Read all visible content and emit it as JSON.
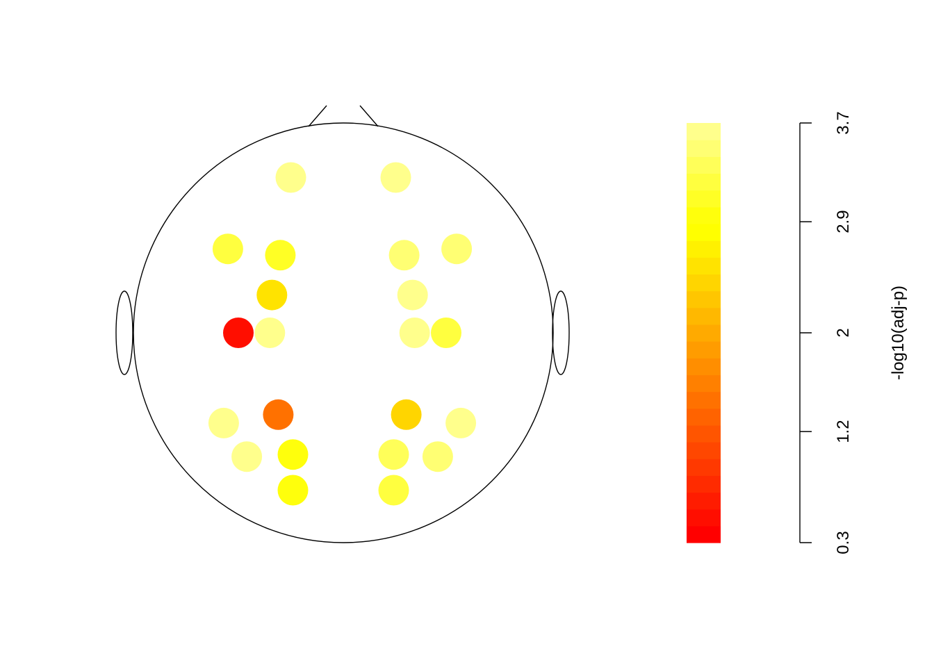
{
  "chart_data": {
    "type": "scatter",
    "subtype": "eeg-topographic-map",
    "title": "",
    "colorbar": {
      "label": "-log10(adj-p)",
      "ticks": [
        "0.3",
        "1.2",
        "2",
        "2.9",
        "3.7"
      ],
      "tick_values": [
        0.3,
        1.2,
        2.0,
        2.9,
        3.7
      ],
      "range": [
        0.3,
        3.7
      ],
      "n_colors": 25,
      "palette": "heat (red to light yellow)"
    },
    "electrodes": [
      {
        "x": -0.25,
        "y": 0.74,
        "value": 3.65
      },
      {
        "x": 0.25,
        "y": 0.74,
        "value": 3.65
      },
      {
        "x": -0.55,
        "y": 0.4,
        "value": 3.25
      },
      {
        "x": -0.3,
        "y": 0.37,
        "value": 3.05
      },
      {
        "x": 0.29,
        "y": 0.37,
        "value": 3.55
      },
      {
        "x": 0.54,
        "y": 0.4,
        "value": 3.5
      },
      {
        "x": -0.34,
        "y": 0.18,
        "value": 2.5
      },
      {
        "x": 0.33,
        "y": 0.18,
        "value": 3.6
      },
      {
        "x": -0.5,
        "y": 0.0,
        "value": 0.5
      },
      {
        "x": -0.35,
        "y": 0.0,
        "value": 3.65
      },
      {
        "x": 0.34,
        "y": 0.0,
        "value": 3.65
      },
      {
        "x": 0.49,
        "y": 0.0,
        "value": 3.2
      },
      {
        "x": -0.31,
        "y": -0.39,
        "value": 1.45
      },
      {
        "x": 0.3,
        "y": -0.39,
        "value": 2.4
      },
      {
        "x": -0.57,
        "y": -0.43,
        "value": 3.6
      },
      {
        "x": 0.56,
        "y": -0.43,
        "value": 3.6
      },
      {
        "x": -0.46,
        "y": -0.59,
        "value": 3.6
      },
      {
        "x": -0.24,
        "y": -0.58,
        "value": 2.95
      },
      {
        "x": 0.24,
        "y": -0.58,
        "value": 3.35
      },
      {
        "x": 0.45,
        "y": -0.59,
        "value": 3.55
      },
      {
        "x": -0.24,
        "y": -0.75,
        "value": 3.0
      },
      {
        "x": 0.24,
        "y": -0.75,
        "value": 3.2
      }
    ]
  }
}
